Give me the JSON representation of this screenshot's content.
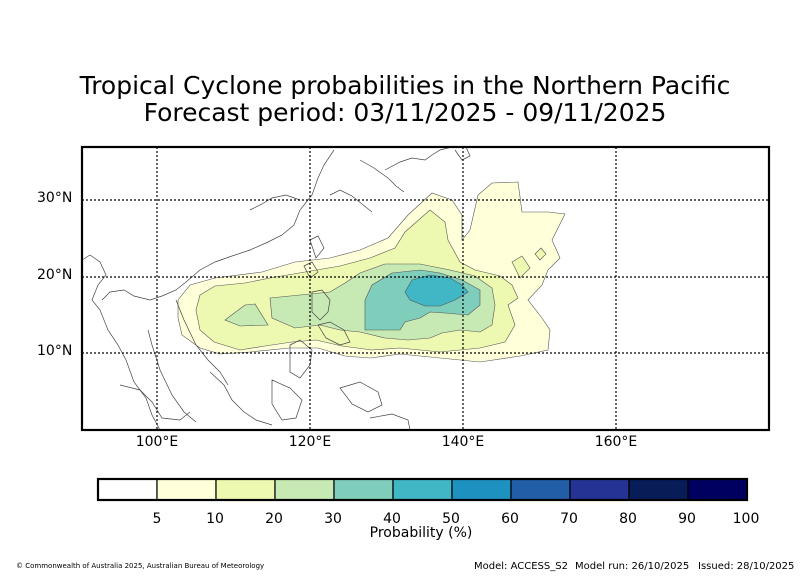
{
  "title": {
    "line1": "Tropical Cyclone probabilities in the Northern Pacific",
    "line2": "Forecast period: 03/11/2025 - 09/11/2025"
  },
  "axes": {
    "lat_labels": [
      "30°N",
      "20°N",
      "10°N"
    ],
    "lon_labels": [
      "100°E",
      "120°E",
      "140°E",
      "160°E"
    ]
  },
  "colorbar": {
    "label": "Probability (%)",
    "ticks": [
      "5",
      "10",
      "20",
      "30",
      "40",
      "50",
      "60",
      "70",
      "80",
      "90",
      "100"
    ],
    "colors": [
      "#ffffff",
      "#ffffd9",
      "#edf8b1",
      "#c7e9b4",
      "#7fcdbb",
      "#41b6c4",
      "#1d91c0",
      "#225ea8",
      "#253494",
      "#081d58",
      "#000060"
    ]
  },
  "footer": {
    "copyright": "© Commonwealth of Australia 2025, Australian Bureau of Meteorology",
    "model": "Model: ACCESS_S2",
    "model_run": "Model run: 26/10/2025",
    "issued": "Issued: 28/10/2025"
  }
}
